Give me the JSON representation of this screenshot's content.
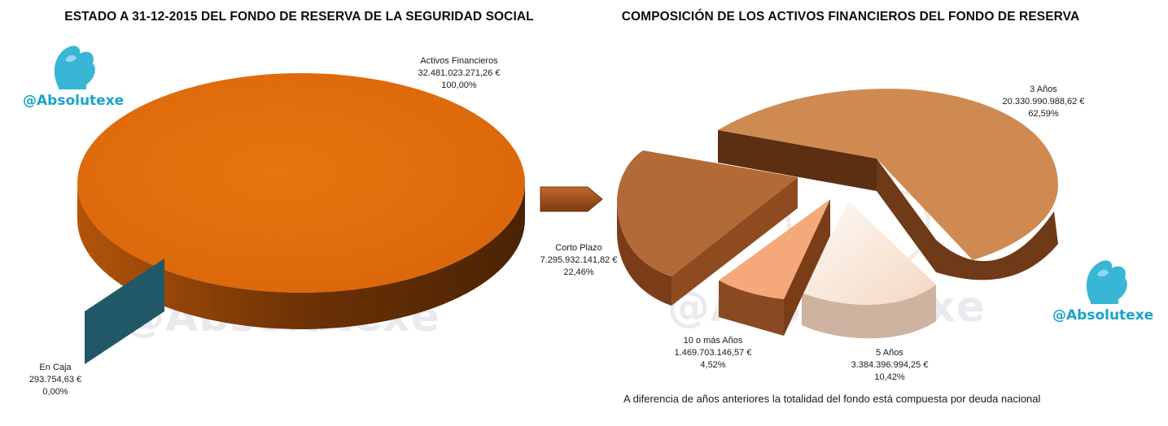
{
  "titles": {
    "left": "ESTADO A 31-12-2015 DEL FONDO DE RESERVA DE LA SEGURIDAD SOCIAL",
    "right": "COMPOSICIÓN DE LOS ACTIVOS FINANCIEROS DEL FONDO DE RESERVA"
  },
  "watermark": {
    "handle": "@Absolutexe",
    "background": "@Absolutexe",
    "icon": "griffin-logo-icon"
  },
  "footnote": "A diferencia de años anteriores la totalidad del fondo está compuesta por deuda nacional",
  "colors": {
    "orange_top": "#e36c09",
    "orange_side": "#7a3a06",
    "teal": "#215868",
    "brown": "#b26a37",
    "brown_light": "#cf8a52",
    "salmon": "#f5a87a",
    "cream": "#fbe9dc",
    "arrow": "#a9561f",
    "brand": "#1aa4c8"
  },
  "chart_data": [
    {
      "type": "pie",
      "title": "ESTADO A 31-12-2015 DEL FONDO DE RESERVA DE LA SEGURIDAD SOCIAL",
      "slices": [
        {
          "name": "Activos Financieros",
          "value": 32481023271.26,
          "value_label": "32.481.023.271,26 €",
          "percent_label": "100,00%"
        },
        {
          "name": "En Caja",
          "value": 293754.63,
          "value_label": "293.754,63 €",
          "percent_label": "0,00%"
        }
      ]
    },
    {
      "type": "pie",
      "title": "COMPOSICIÓN DE LOS ACTIVOS FINANCIEROS DEL FONDO DE RESERVA",
      "slices": [
        {
          "name": "3 Años",
          "value": 20330990988.62,
          "value_label": "20.330.990.988,62 €",
          "percent_label": "62,59%"
        },
        {
          "name": "5 Años",
          "value": 3384396994.25,
          "value_label": "3.384.396.994,25 €",
          "percent_label": "10,42%"
        },
        {
          "name": "10 o más Años",
          "value": 1469703146.57,
          "value_label": "1.469.703.146,57 €",
          "percent_label": "4,52%"
        },
        {
          "name": "Corto Plazo",
          "value": 7295932141.82,
          "value_label": "7.295.932.141,82 €",
          "percent_label": "22,46%"
        }
      ]
    }
  ]
}
